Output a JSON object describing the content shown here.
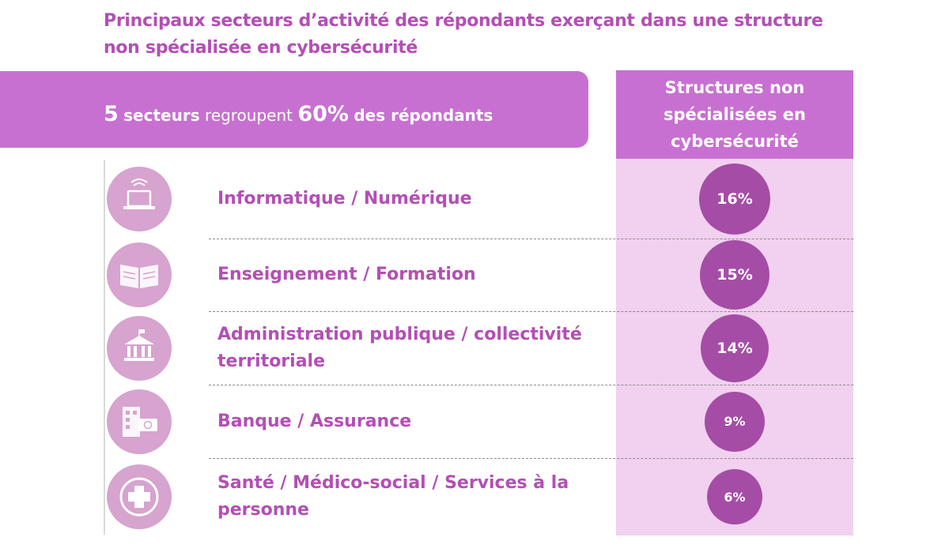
{
  "title": "Principaux secteurs d’activité des répondants exerçant dans une structure non spécialisée en cybersécurité",
  "banner": {
    "sector_count": "5",
    "word_secteurs": "secteurs",
    "word_regroupent": "regroupent",
    "share": "60%",
    "word_rest": "des répondants"
  },
  "column_header": "Structures non spécialisées en cybersécurité",
  "colors": {
    "accent": "#c870d1",
    "title": "#b34fb4",
    "bubble": "#a54da6",
    "column_bg": "#f1d1ef",
    "icon_bg": "#d7a3cf"
  },
  "chart_data": {
    "type": "table",
    "title": "Principaux secteurs d’activité des répondants exerçant dans une structure non spécialisée en cybersécurité",
    "column": "Structures non spécialisées en cybersécurité",
    "categories": [
      "Informatique / Numérique",
      "Enseignement / Formation",
      "Administration publique / collectivité territoriale",
      "Banque / Assurance",
      "Santé / Médico-social / Services à la personne"
    ],
    "values": [
      16,
      15,
      14,
      9,
      6
    ],
    "value_labels": [
      "16%",
      "15%",
      "14%",
      "9%",
      "6%"
    ],
    "icons": [
      "laptop-icon",
      "book-icon",
      "government-building-icon",
      "bank-building-icon",
      "medical-cross-icon"
    ]
  }
}
